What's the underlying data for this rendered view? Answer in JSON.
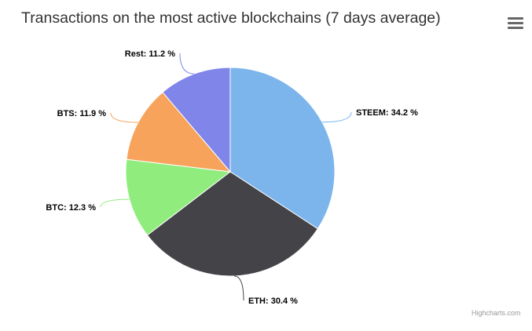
{
  "title": "Transactions on the most active blockchains (7 days average)",
  "credits": "Highcharts.com",
  "menu_icon": "hamburger-menu-icon",
  "chart_data": {
    "type": "pie",
    "title": "Transactions on the most active blockchains (7 days average)",
    "unit": "%",
    "slices": [
      {
        "name": "STEEM",
        "value": 34.2,
        "color": "#7cb5ec",
        "label": "STEEM: 34.2 %"
      },
      {
        "name": "ETH",
        "value": 30.4,
        "color": "#434348",
        "label": "ETH: 30.4 %"
      },
      {
        "name": "BTC",
        "value": 12.3,
        "color": "#90ed7d",
        "label": "BTC: 12.3 %"
      },
      {
        "name": "BTS",
        "value": 11.9,
        "color": "#f7a35c",
        "label": "BTS: 11.9 %"
      },
      {
        "name": "Rest",
        "value": 11.2,
        "color": "#8085e9",
        "label": "Rest: 11.2 %"
      }
    ]
  }
}
